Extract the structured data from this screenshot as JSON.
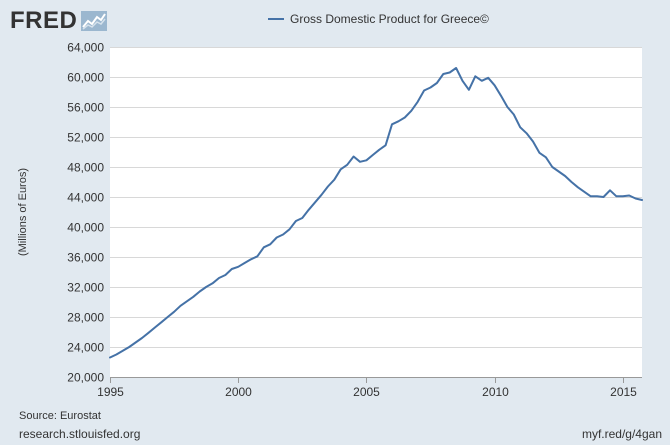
{
  "logo": {
    "text": "FRED",
    "icon": "fred-chart-icon"
  },
  "footer": {
    "source": "Source: Eurostat",
    "site": "research.stlouisfed.org",
    "short_link": "myf.red/g/4gan"
  },
  "colors": {
    "series": "#4572a7",
    "background": "#e1e9f0",
    "plot_background": "#ffffff",
    "grid": "#d8d8d8"
  },
  "chart_data": {
    "type": "line",
    "title": "",
    "xlabel": "",
    "ylabel": "(Millions of Euros)",
    "xlim": [
      1995.0,
      2015.75
    ],
    "ylim": [
      20000,
      64000
    ],
    "x_ticks": [
      1995,
      2000,
      2005,
      2010,
      2015
    ],
    "y_ticks": [
      20000,
      24000,
      28000,
      32000,
      36000,
      40000,
      44000,
      48000,
      52000,
      56000,
      60000,
      64000
    ],
    "y_tick_labels": [
      "20,000",
      "24,000",
      "28,000",
      "32,000",
      "36,000",
      "40,000",
      "44,000",
      "48,000",
      "52,000",
      "56,000",
      "60,000",
      "64,000"
    ],
    "grid": true,
    "legend": "top-center",
    "series": [
      {
        "name": "Gross Domestic Product for Greece©",
        "x": [
          1995.0,
          1995.25,
          1995.5,
          1995.75,
          1996.0,
          1996.25,
          1996.5,
          1996.75,
          1997.0,
          1997.25,
          1997.5,
          1997.75,
          1998.0,
          1998.25,
          1998.5,
          1998.75,
          1999.0,
          1999.25,
          1999.5,
          1999.75,
          2000.0,
          2000.25,
          2000.5,
          2000.75,
          2001.0,
          2001.25,
          2001.5,
          2001.75,
          2002.0,
          2002.25,
          2002.5,
          2002.75,
          2003.0,
          2003.25,
          2003.5,
          2003.75,
          2004.0,
          2004.25,
          2004.5,
          2004.75,
          2005.0,
          2005.25,
          2005.5,
          2005.75,
          2006.0,
          2006.25,
          2006.5,
          2006.75,
          2007.0,
          2007.25,
          2007.5,
          2007.75,
          2008.0,
          2008.25,
          2008.5,
          2008.75,
          2009.0,
          2009.25,
          2009.5,
          2009.75,
          2010.0,
          2010.25,
          2010.5,
          2010.75,
          2011.0,
          2011.25,
          2011.5,
          2011.75,
          2012.0,
          2012.25,
          2012.5,
          2012.75,
          2013.0,
          2013.25,
          2013.5,
          2013.75,
          2014.0,
          2014.25,
          2014.5,
          2014.75,
          2015.0,
          2015.25,
          2015.5,
          2015.75
        ],
        "values": [
          22600,
          23000,
          23500,
          24000,
          24600,
          25200,
          25900,
          26600,
          27300,
          28000,
          28700,
          29500,
          30100,
          30700,
          31400,
          32000,
          32500,
          33200,
          33600,
          34400,
          34700,
          35200,
          35700,
          36100,
          37300,
          37700,
          38600,
          39000,
          39700,
          40800,
          41200,
          42300,
          43300,
          44300,
          45400,
          46300,
          47700,
          48300,
          49400,
          48700,
          48900,
          49600,
          50300,
          50900,
          53700,
          54100,
          54600,
          55500,
          56700,
          58200,
          58600,
          59200,
          60400,
          60600,
          61200,
          59500,
          58300,
          60100,
          59500,
          59900,
          58900,
          57500,
          56000,
          55000,
          53300,
          52500,
          51400,
          49900,
          49300,
          48000,
          47400,
          46800,
          46000,
          45300,
          44700,
          44100,
          44100,
          44000,
          44900,
          44100,
          44100,
          44200,
          43800,
          43600
        ]
      }
    ]
  }
}
